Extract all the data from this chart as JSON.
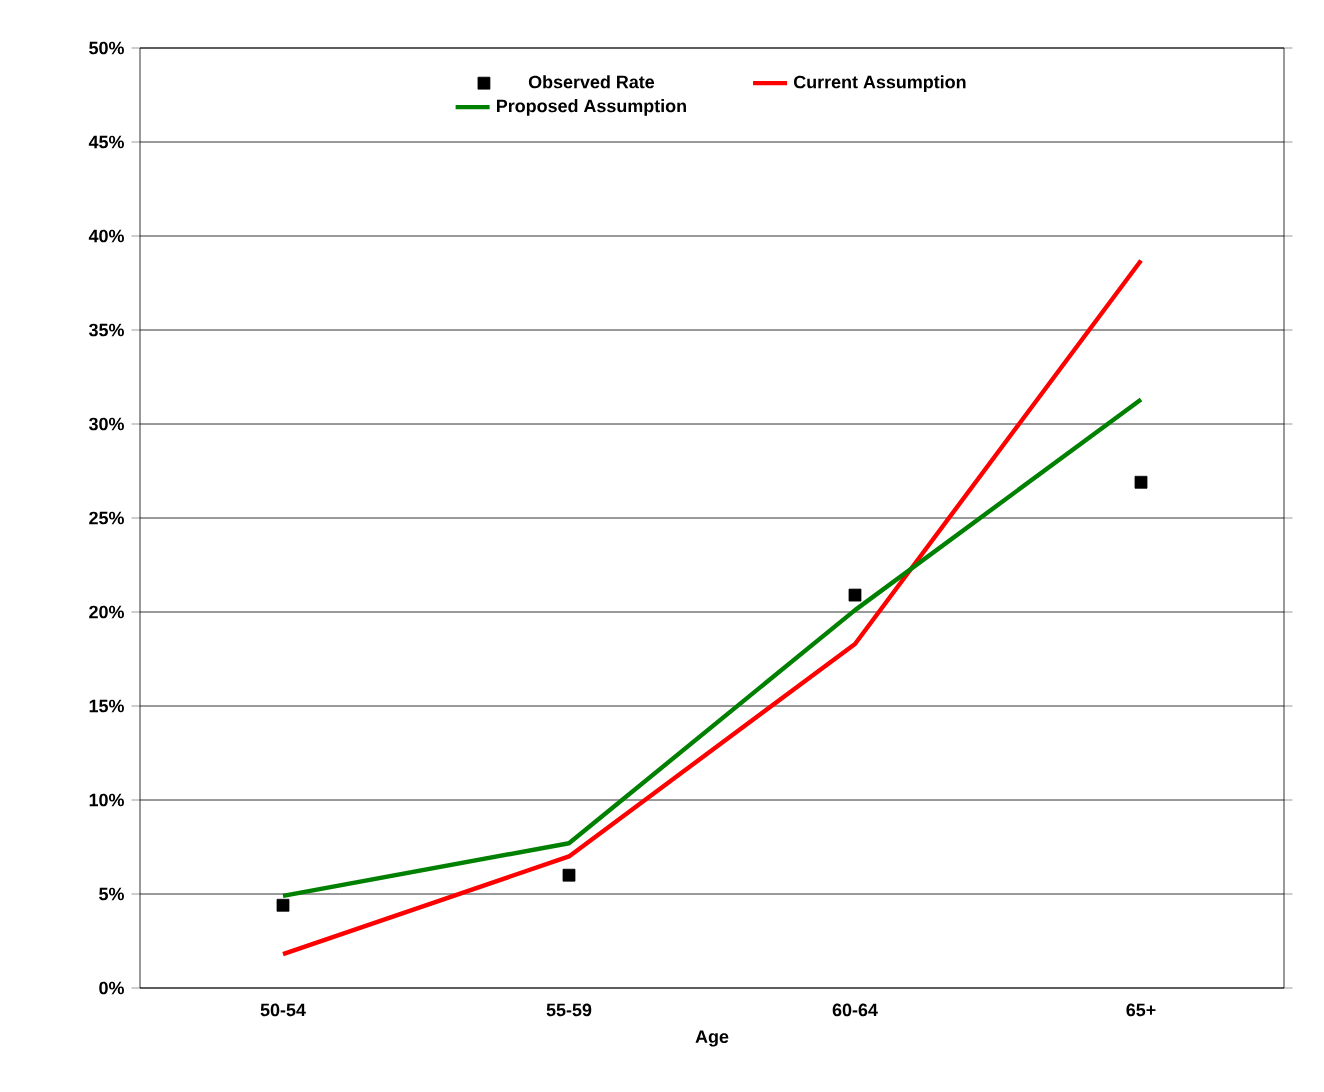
{
  "chart_data": {
    "type": "line",
    "xlabel": "Age",
    "categories": [
      "50-54",
      "55-59",
      "60-64",
      "65+"
    ],
    "series": [
      {
        "name": "Observed Rate",
        "type": "scatter",
        "marker": "square",
        "color": "#000000",
        "values": [
          4.4,
          6.0,
          20.9,
          26.9
        ]
      },
      {
        "name": "Current Assumption",
        "type": "line",
        "color": "#ff0000",
        "values": [
          1.8,
          7.0,
          18.3,
          38.7
        ]
      },
      {
        "name": "Proposed Assumption",
        "type": "line",
        "color": "#008000",
        "values": [
          4.9,
          7.7,
          20.1,
          31.3
        ]
      }
    ],
    "ylim": [
      0,
      50
    ],
    "yticks": [
      {
        "value": 0,
        "label": "0%"
      },
      {
        "value": 5,
        "label": "5%"
      },
      {
        "value": 10,
        "label": "10%"
      },
      {
        "value": 15,
        "label": "15%"
      },
      {
        "value": 20,
        "label": "20%"
      },
      {
        "value": 25,
        "label": "25%"
      },
      {
        "value": 30,
        "label": "30%"
      },
      {
        "value": 35,
        "label": "35%"
      },
      {
        "value": 40,
        "label": "40%"
      },
      {
        "value": 45,
        "label": "45%"
      },
      {
        "value": 50,
        "label": "50%"
      }
    ],
    "grid": "y",
    "legend": "top"
  }
}
